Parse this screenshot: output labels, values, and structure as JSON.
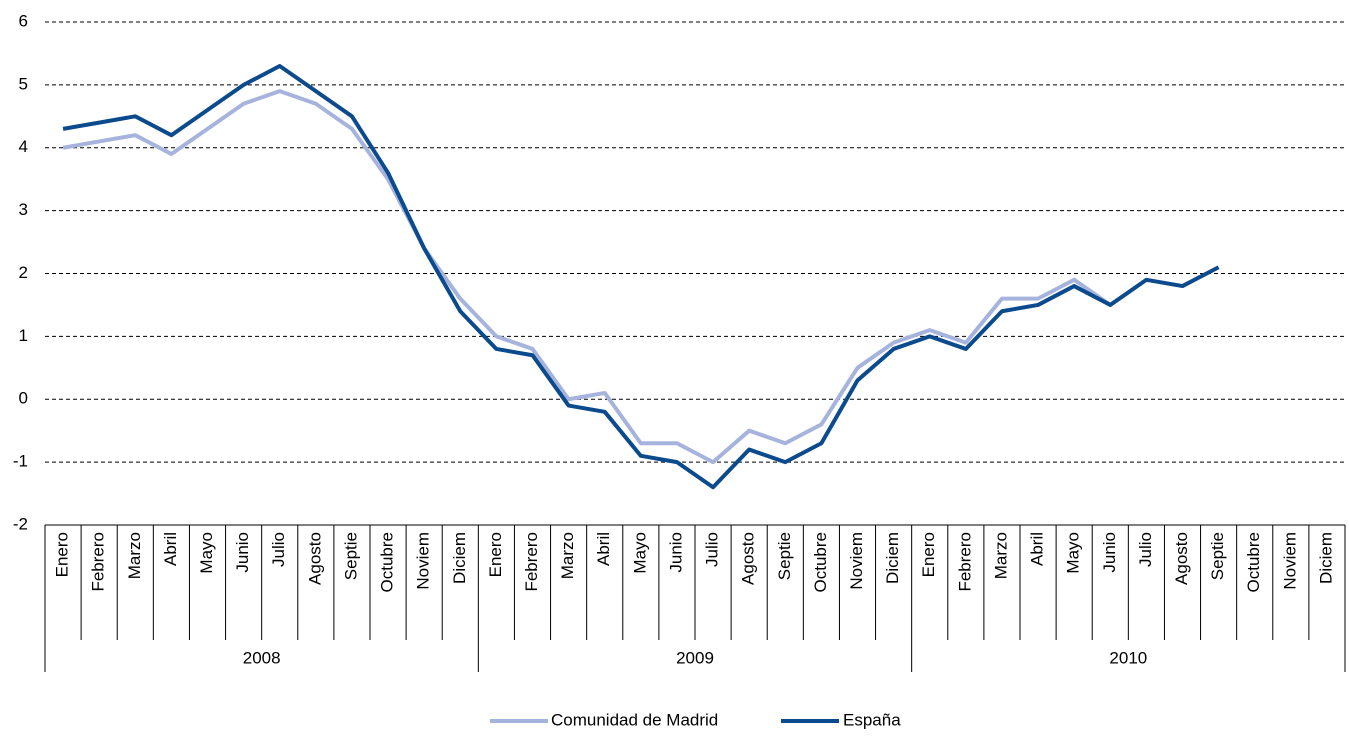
{
  "chart_data": {
    "type": "line",
    "categories": [
      "Enero",
      "Febrero",
      "Marzo",
      "Abril",
      "Mayo",
      "Junio",
      "Julio",
      "Agosto",
      "Septie",
      "Octubre",
      "Noviem",
      "Diciem",
      "Enero",
      "Febrero",
      "Marzo",
      "Abril",
      "Mayo",
      "Junio",
      "Julio",
      "Agosto",
      "Septie",
      "Octubre",
      "Noviem",
      "Diciem",
      "Enero",
      "Febrero",
      "Marzo",
      "Abril",
      "Mayo",
      "Junio",
      "Julio",
      "Agosto",
      "Septie",
      "Octubre",
      "Noviem",
      "Diciem"
    ],
    "groups": [
      "2008",
      "2009",
      "2010"
    ],
    "series": [
      {
        "name": "Comunidad de Madrid",
        "color": "#a6b4dd",
        "values": [
          4.0,
          4.1,
          4.2,
          3.9,
          4.3,
          4.7,
          4.9,
          4.7,
          4.3,
          3.5,
          2.4,
          1.6,
          1.0,
          0.8,
          0.0,
          0.1,
          -0.7,
          -0.7,
          -1.0,
          -0.5,
          -0.7,
          -0.4,
          0.5,
          0.9,
          1.1,
          0.9,
          1.6,
          1.6,
          1.9,
          1.5,
          null,
          null,
          null,
          null,
          null,
          null
        ]
      },
      {
        "name": "España",
        "color": "#0b4a8c",
        "values": [
          4.3,
          4.4,
          4.5,
          4.2,
          4.6,
          5.0,
          5.3,
          4.9,
          4.5,
          3.6,
          2.4,
          1.4,
          0.8,
          0.7,
          -0.1,
          -0.2,
          -0.9,
          -1.0,
          -1.4,
          -0.8,
          -1.0,
          -0.7,
          0.3,
          0.8,
          1.0,
          0.8,
          1.4,
          1.5,
          1.8,
          1.5,
          1.9,
          1.8,
          2.1,
          null,
          null,
          null
        ]
      }
    ],
    "ylim": [
      -2,
      6
    ],
    "yticks": [
      -2,
      -1,
      0,
      1,
      2,
      3,
      4,
      5,
      6
    ],
    "grid": true,
    "legend": "bottom"
  }
}
